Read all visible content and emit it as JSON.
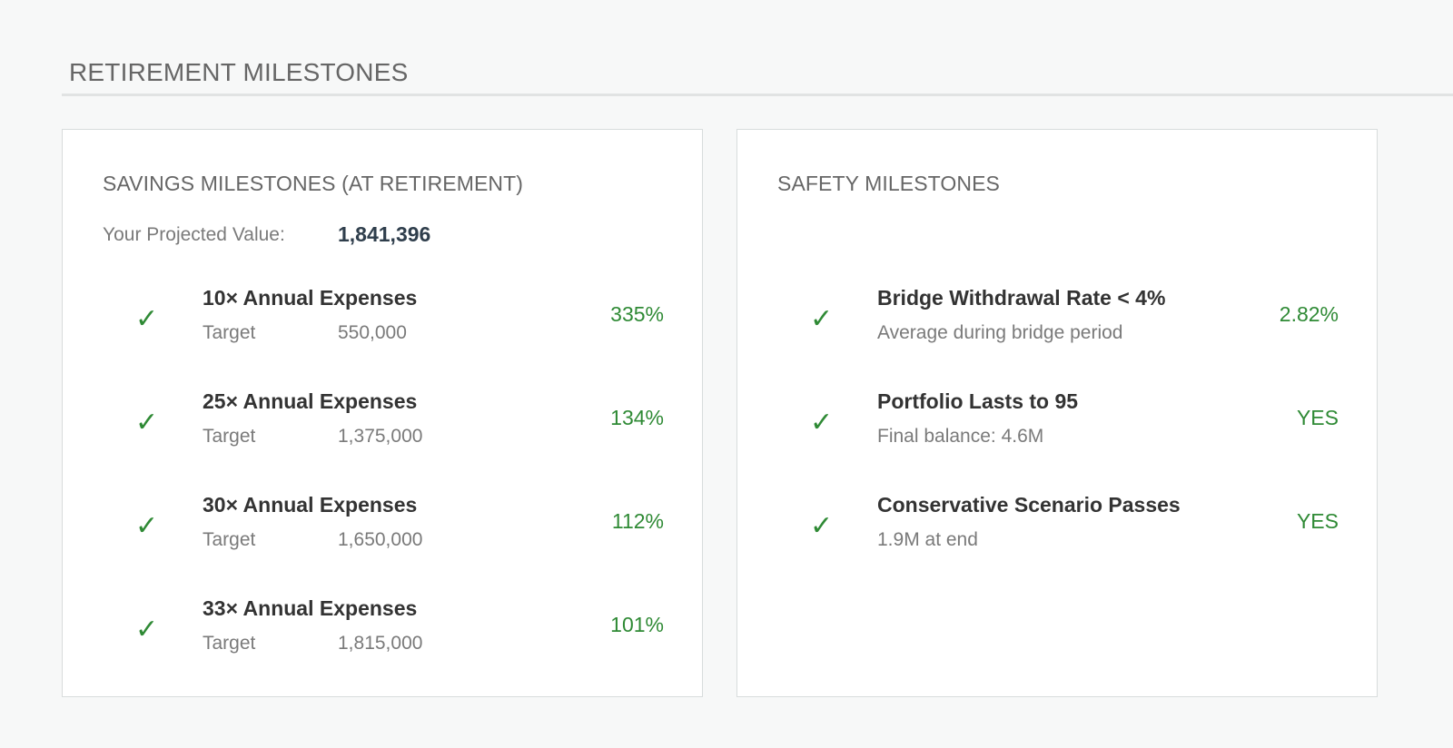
{
  "page": {
    "section_title": "RETIREMENT MILESTONES"
  },
  "savings": {
    "title": "SAVINGS MILESTONES (AT RETIREMENT)",
    "projected_label": "Your Projected Value:",
    "projected_value": "1,841,396",
    "items": [
      {
        "check": "✓",
        "title": "10× Annual Expenses",
        "target_label": "Target",
        "target_value": "550,000",
        "percent": "335%"
      },
      {
        "check": "✓",
        "title": "25× Annual Expenses",
        "target_label": "Target",
        "target_value": "1,375,000",
        "percent": "134%"
      },
      {
        "check": "✓",
        "title": "30× Annual Expenses",
        "target_label": "Target",
        "target_value": "1,650,000",
        "percent": "112%"
      },
      {
        "check": "✓",
        "title": "33× Annual Expenses",
        "target_label": "Target",
        "target_value": "1,815,000",
        "percent": "101%"
      }
    ]
  },
  "safety": {
    "title": "SAFETY MILESTONES",
    "items": [
      {
        "check": "✓",
        "title": "Bridge Withdrawal Rate < 4%",
        "subtitle": "Average during bridge period",
        "value": "2.82%"
      },
      {
        "check": "✓",
        "title": "Portfolio Lasts to 95",
        "subtitle": "Final balance: 4.6M",
        "value": "YES"
      },
      {
        "check": "✓",
        "title": "Conservative Scenario Passes",
        "subtitle": "1.9M at end",
        "value": "YES"
      }
    ]
  },
  "colors": {
    "accent_green": "#2f8a35",
    "heading_gray": "#666666",
    "value_navy": "#2f3e4c"
  },
  "icons": {
    "check": "check-icon"
  }
}
